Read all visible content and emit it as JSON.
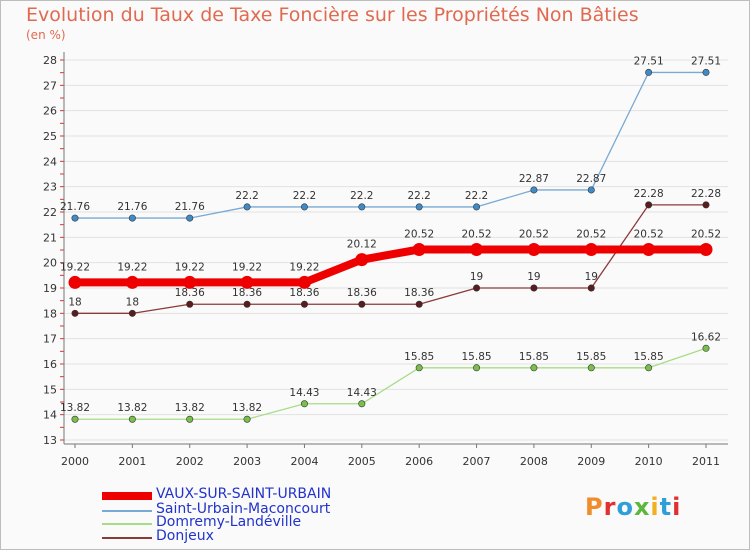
{
  "header": {
    "title": "Evolution du Taux de Taxe Foncière sur les Propriétés Non Bâties",
    "unit": "(en %)"
  },
  "logo": {
    "text": "Proxiti",
    "colors": [
      "#f08c2a",
      "#e03030",
      "#2e9fd8",
      "#5cb83a",
      "#f0b020",
      "#2e9fd8",
      "#e03030"
    ]
  },
  "chart_data": {
    "type": "line",
    "title": "Evolution du Taux de Taxe Foncière sur les Propriétés Non Bâties",
    "ylabel": "(en %)",
    "xlabel": "",
    "x": [
      "2000",
      "2001",
      "2002",
      "2003",
      "2004",
      "2005",
      "2006",
      "2007",
      "2008",
      "2009",
      "2010",
      "2011"
    ],
    "ylim": [
      13,
      28
    ],
    "yticks": [
      "13",
      "14",
      "15",
      "16",
      "17",
      "18",
      "19",
      "20",
      "21",
      "22",
      "23",
      "24",
      "25",
      "26",
      "27",
      "28"
    ],
    "grid": "horizontal",
    "legend_position": "bottom-left",
    "series": [
      {
        "name": "VAUX-SUR-SAINT-URBAIN",
        "color": "#ee0000",
        "width": 8,
        "marker_color": "#ee0000",
        "values": [
          19.22,
          19.22,
          19.22,
          19.22,
          19.22,
          20.12,
          20.52,
          20.52,
          20.52,
          20.52,
          20.52,
          20.52
        ],
        "labels": [
          "19.22",
          "19.22",
          "19.22",
          "19.22",
          "19.22",
          "20.12",
          "20.52",
          "20.52",
          "20.52",
          "20.52",
          "20.52",
          "20.52"
        ]
      },
      {
        "name": "Saint-Urbain-Maconcourt",
        "color": "#7aa9d3",
        "width": 1.3,
        "marker_color": "#3f8bc8",
        "values": [
          21.76,
          21.76,
          21.76,
          22.2,
          22.2,
          22.2,
          22.2,
          22.2,
          22.87,
          22.87,
          27.51,
          27.51
        ],
        "labels": [
          "21.76",
          "21.76",
          "21.76",
          "22.2",
          "22.2",
          "22.2",
          "22.2",
          "22.2",
          "22.87",
          "22.87",
          "27.51",
          "27.51"
        ]
      },
      {
        "name": "Domremy-Landéville",
        "color": "#a8dc86",
        "width": 1.3,
        "marker_color": "#78c04a",
        "values": [
          13.82,
          13.82,
          13.82,
          13.82,
          14.43,
          14.43,
          15.85,
          15.85,
          15.85,
          15.85,
          15.85,
          16.62
        ],
        "labels": [
          "13.82",
          "13.82",
          "13.82",
          "13.82",
          "14.43",
          "14.43",
          "15.85",
          "15.85",
          "15.85",
          "15.85",
          "15.85",
          "16.62"
        ]
      },
      {
        "name": "Donjeux",
        "color": "#8a3a3a",
        "width": 1.3,
        "marker_color": "#5a1c1c",
        "values": [
          18,
          18,
          18.36,
          18.36,
          18.36,
          18.36,
          18.36,
          19,
          19,
          19,
          22.28,
          22.28
        ],
        "labels": [
          "18",
          "18",
          "18.36",
          "18.36",
          "18.36",
          "18.36",
          "18.36",
          "19",
          "19",
          "19",
          "22.28",
          "22.28"
        ]
      }
    ]
  }
}
